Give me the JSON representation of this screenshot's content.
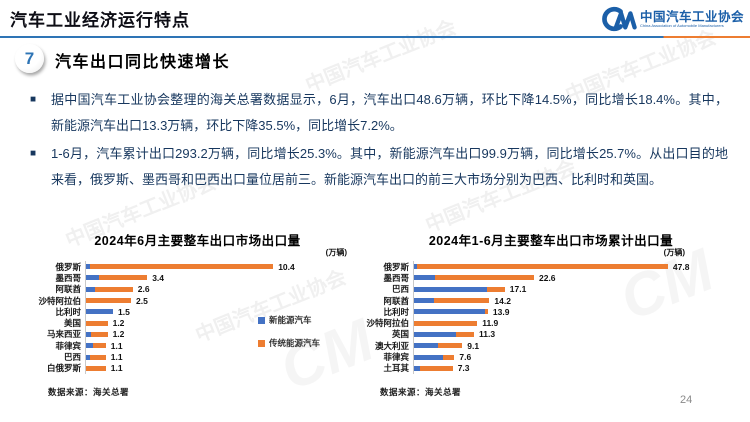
{
  "page": {
    "title": "汽车工业经济运行特点",
    "page_number": "24"
  },
  "logo": {
    "mark": "CM",
    "text_cn": "中国汽车工业协会",
    "text_en": "China Association of Automobile Manufacturers"
  },
  "section": {
    "number": "7",
    "heading": "汽车出口同比快速增长"
  },
  "bullet_marker": "■",
  "bullets": [
    "据中国汽车工业协会整理的海关总署数据显示，6月，汽车出口48.6万辆，环比下降14.5%，同比增长18.4%。其中，新能源汽车出口13.3万辆，环比下降35.5%，同比增长7.2%。",
    "1-6月，汽车累计出口293.2万辆，同比增长25.3%。其中，新能源汽车出口99.9万辆，同比增长25.7%。从出口目的地来看，俄罗斯、墨西哥和巴西出口量位居前三。新能源汽车出口的前三大市场分别为巴西、比利时和英国。"
  ],
  "colors": {
    "nev": "#4472C4",
    "ice": "#ED7D31",
    "accent_line": "#2E74B5",
    "accent_tail": "#ED7D31",
    "body_text": "#17375E"
  },
  "legend": {
    "items": [
      {
        "label": "新能源汽车"
      },
      {
        "label": "传统能源汽车"
      }
    ]
  },
  "source_note": "数据来源：海关总署",
  "watermark": {
    "text": "中国汽车工业协会",
    "mark": "CM"
  },
  "chart_data": [
    {
      "type": "bar",
      "orientation": "horizontal",
      "stacked": true,
      "title": "2024年6月主要整车出口市场出口量",
      "unit": "(万辆)",
      "xlabel": "",
      "ylabel": "",
      "xlim": [
        0,
        11.5
      ],
      "grid": false,
      "legend_position": "right",
      "categories": [
        "俄罗斯",
        "墨西哥",
        "阿联酋",
        "沙特阿拉伯",
        "比利时",
        "美国",
        "马来西亚",
        "菲律宾",
        "巴西",
        "白俄罗斯"
      ],
      "series": [
        {
          "name": "新能源汽车",
          "values": [
            0.2,
            0.7,
            0.5,
            0.0,
            1.5,
            0.0,
            0.3,
            0.4,
            0.2,
            0.0
          ]
        },
        {
          "name": "传统能源汽车",
          "values": [
            10.2,
            2.7,
            2.1,
            2.5,
            0.0,
            1.2,
            0.9,
            0.7,
            0.9,
            1.1
          ]
        }
      ],
      "totals": [
        10.4,
        3.4,
        2.6,
        2.5,
        1.5,
        1.2,
        1.2,
        1.1,
        1.1,
        1.1
      ]
    },
    {
      "type": "bar",
      "orientation": "horizontal",
      "stacked": true,
      "title": "2024年1-6月主要整车出口市场累计出口量",
      "unit": "(万辆)",
      "xlabel": "",
      "ylabel": "",
      "xlim": [
        0,
        52
      ],
      "grid": false,
      "legend_position": "none",
      "categories": [
        "俄罗斯",
        "墨西哥",
        "巴西",
        "阿联酋",
        "比利时",
        "沙特阿拉伯",
        "英国",
        "澳大利亚",
        "菲律宾",
        "土耳其"
      ],
      "series": [
        {
          "name": "新能源汽车",
          "values": [
            0.5,
            3.9,
            13.8,
            3.8,
            13.4,
            0.0,
            7.9,
            4.5,
            5.4,
            1.1
          ]
        },
        {
          "name": "传统能源汽车",
          "values": [
            47.3,
            18.7,
            3.3,
            10.4,
            0.5,
            11.9,
            3.4,
            4.6,
            2.2,
            6.2
          ]
        }
      ],
      "totals": [
        47.8,
        22.6,
        17.1,
        14.2,
        13.9,
        11.9,
        11.3,
        9.1,
        7.6,
        7.3
      ]
    }
  ]
}
